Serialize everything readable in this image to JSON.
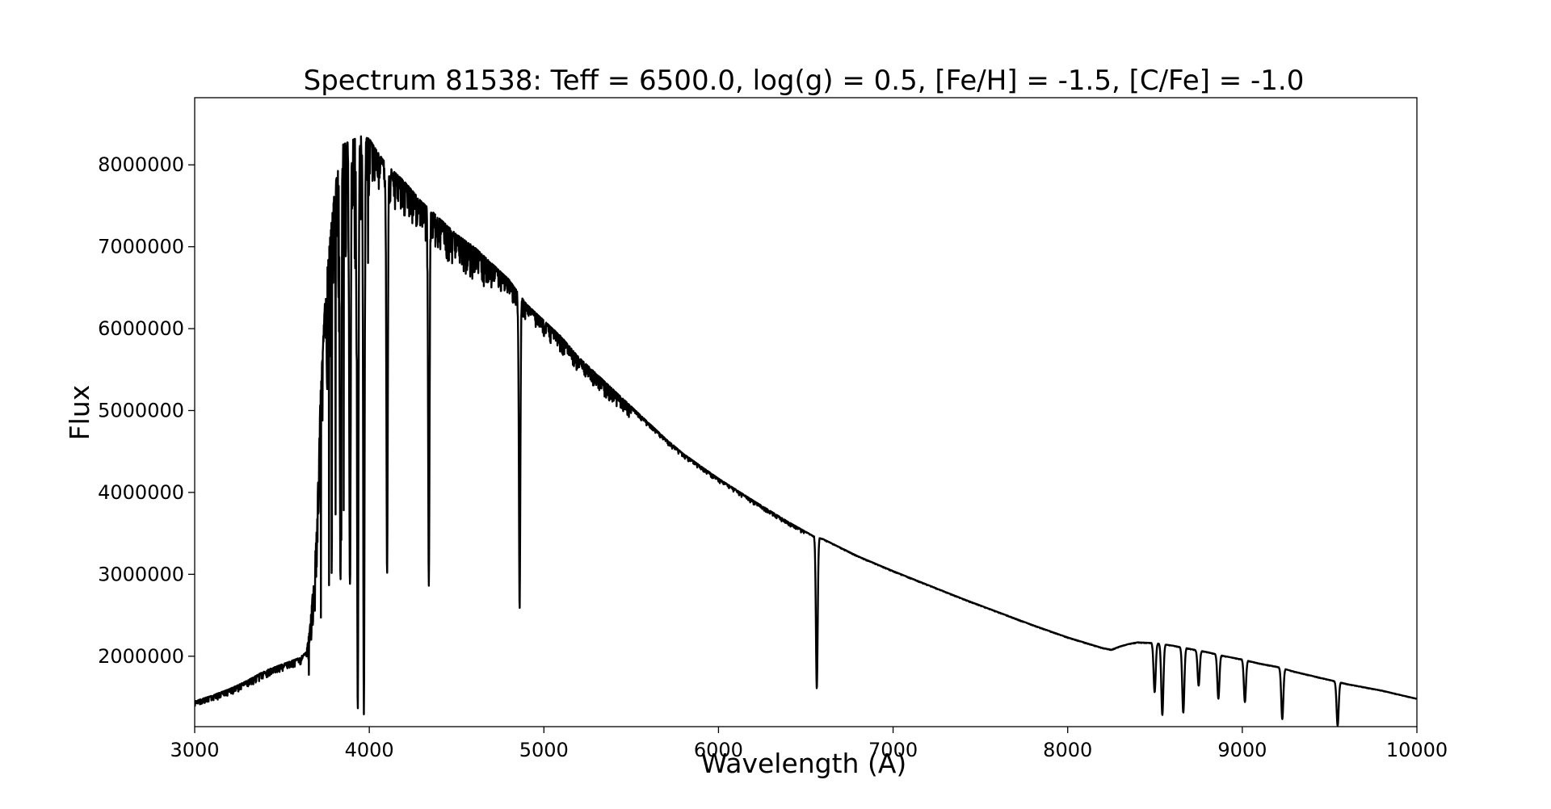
{
  "chart_data": {
    "type": "line",
    "title": "Spectrum 81538: Teff = 6500.0, log(g) = 0.5, [Fe/H] = -1.5, [C/Fe] = -1.0",
    "xlabel": "Wavelength (A)",
    "ylabel": "Flux",
    "xlim": [
      3000,
      10000
    ],
    "ylim": [
      1140000,
      8820000
    ],
    "xticks": [
      3000,
      4000,
      5000,
      6000,
      7000,
      8000,
      9000,
      10000
    ],
    "yticks": [
      2000000,
      3000000,
      4000000,
      5000000,
      6000000,
      7000000,
      8000000
    ],
    "grid": false,
    "line_color": "#000000",
    "series": [
      {
        "x": [
          3000,
          3100,
          3200,
          3300,
          3400,
          3500,
          3600,
          3640,
          3660,
          3680,
          3700,
          3720,
          3750,
          3800,
          3850,
          3900,
          3950,
          4000,
          4050,
          4100,
          4200,
          4300,
          4400,
          4500,
          4600,
          4700,
          4800,
          4850,
          4900,
          5000,
          5100,
          5200,
          5300,
          5400,
          5500,
          5600,
          5700,
          5800,
          5900,
          6000,
          6200,
          6400,
          6500,
          6550,
          6600,
          6800,
          7000,
          7200,
          7400,
          7600,
          7800,
          8000,
          8200,
          8250,
          8300,
          8350,
          8400,
          8500,
          8600,
          8700,
          8800,
          8900,
          9000,
          9100,
          9200,
          9300,
          9400,
          9500,
          9600,
          9700,
          9800,
          9900,
          10000
        ],
        "y": [
          1450000,
          1520000,
          1600000,
          1700000,
          1820000,
          1900000,
          1980000,
          2050000,
          2350000,
          2900000,
          3600000,
          5200000,
          6500000,
          7700000,
          8250000,
          8300000,
          8350000,
          8320000,
          8150000,
          8000000,
          7800000,
          7550000,
          7350000,
          7150000,
          7000000,
          6800000,
          6600000,
          6450000,
          6300000,
          6100000,
          5900000,
          5650000,
          5450000,
          5250000,
          5050000,
          4850000,
          4650000,
          4470000,
          4320000,
          4170000,
          3900000,
          3640000,
          3520000,
          3460000,
          3430000,
          3220000,
          3040000,
          2870000,
          2700000,
          2540000,
          2380000,
          2230000,
          2100000,
          2080000,
          2120000,
          2150000,
          2170000,
          2160000,
          2130000,
          2090000,
          2050000,
          2000000,
          1960000,
          1910000,
          1870000,
          1810000,
          1760000,
          1710000,
          1660000,
          1620000,
          1580000,
          1530000,
          1480000
        ]
      }
    ],
    "absorption_lines": [
      {
        "x": 3934,
        "y": 1310000
      },
      {
        "x": 3969,
        "y": 1290000
      },
      {
        "x": 3835,
        "y": 2900000
      },
      {
        "x": 3889,
        "y": 2850000
      },
      {
        "x": 4102,
        "y": 2980000
      },
      {
        "x": 4341,
        "y": 2860000
      },
      {
        "x": 4861,
        "y": 2560000
      },
      {
        "x": 6563,
        "y": 1600000
      },
      {
        "x": 8498,
        "y": 1560000
      },
      {
        "x": 8542,
        "y": 1280000
      },
      {
        "x": 8662,
        "y": 1310000
      },
      {
        "x": 8750,
        "y": 1640000
      },
      {
        "x": 8863,
        "y": 1480000
      },
      {
        "x": 9015,
        "y": 1440000
      },
      {
        "x": 9229,
        "y": 1230000
      },
      {
        "x": 9546,
        "y": 1150000
      }
    ]
  }
}
